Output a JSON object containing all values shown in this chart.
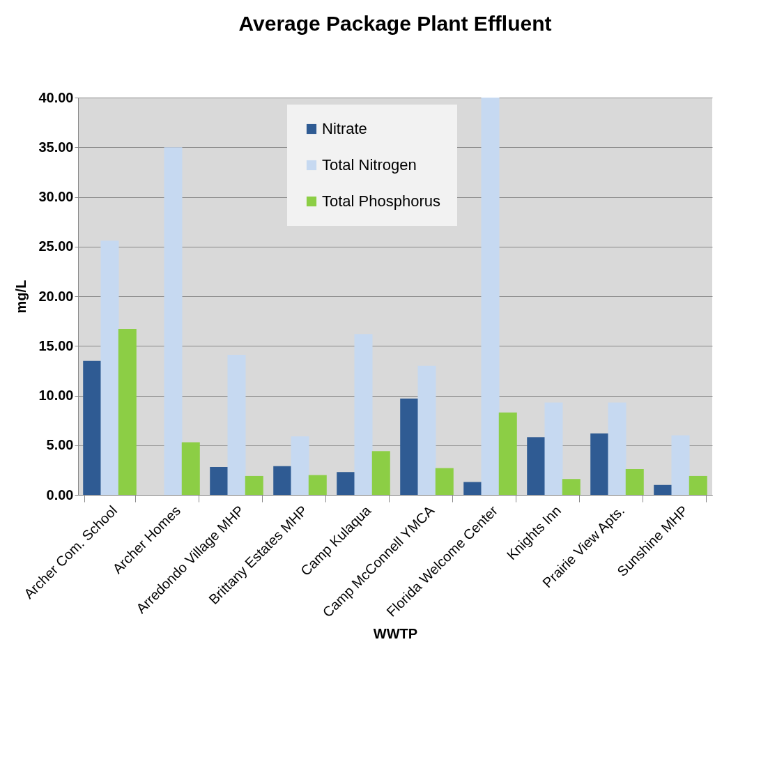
{
  "chart_data": {
    "type": "bar",
    "title": "Average Package Plant Effluent",
    "xlabel": "WWTP",
    "ylabel": "mg/L",
    "categories": [
      "Archer Com. School",
      "Archer Homes",
      "Arredondo Village MHP",
      "Brittany Estates MHP",
      "Camp Kulaqua",
      "Camp McConnell YMCA",
      "Florida Welcome Center",
      "Knights Inn",
      "Prairie View Apts.",
      "Sunshine MHP"
    ],
    "series": [
      {
        "name": "Nitrate",
        "color": "#2f5b93",
        "values": [
          13.5,
          null,
          2.8,
          2.9,
          2.3,
          9.7,
          1.3,
          5.8,
          6.2,
          1.0
        ]
      },
      {
        "name": "Total Nitrogen",
        "color": "#c6d9f1",
        "values": [
          25.6,
          35.0,
          14.1,
          5.9,
          16.2,
          13.0,
          40.0,
          9.3,
          9.3,
          6.0
        ]
      },
      {
        "name": "Total Phosphorus",
        "color": "#8cce45",
        "values": [
          16.7,
          5.3,
          1.9,
          2.0,
          4.4,
          2.7,
          8.3,
          1.6,
          2.6,
          1.9
        ]
      }
    ],
    "ylim": [
      0,
      40
    ],
    "yticks": [
      {
        "value": 0,
        "label": "0.00"
      },
      {
        "value": 5,
        "label": "5.00"
      },
      {
        "value": 10,
        "label": "10.00"
      },
      {
        "value": 15,
        "label": "15.00"
      },
      {
        "value": 20,
        "label": "20.00"
      },
      {
        "value": 25,
        "label": "25.00"
      },
      {
        "value": 30,
        "label": "30.00"
      },
      {
        "value": 35,
        "label": "35.00"
      },
      {
        "value": 40,
        "label": "40.00"
      }
    ],
    "grid": "y",
    "legend": "top"
  }
}
